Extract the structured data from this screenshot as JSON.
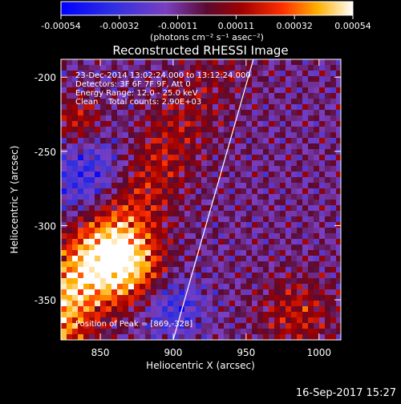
{
  "chart_data": {
    "type": "heatmap",
    "title": "Reconstructed RHESSI Image",
    "xlabel": "Heliocentric X (arcsec)",
    "ylabel": "Heliocentric Y (arcsec)",
    "xlim": [
      823,
      1015
    ],
    "ylim": [
      -377,
      -188
    ],
    "x_ticks": [
      850,
      900,
      950,
      1000
    ],
    "y_ticks": [
      -200,
      -250,
      -300,
      -350
    ],
    "colorbar": {
      "range": [
        -0.00054,
        0.00054
      ],
      "ticks": [
        "-0.00054",
        "-0.00032",
        "-0.00011",
        "0.00011",
        "0.00032",
        "0.00054"
      ],
      "units_label": "(photons cm⁻² s⁻¹ asec⁻²)"
    },
    "annotations": [
      "23-Dec-2014 13:02:24.000 to 13:12:24.000",
      "Detectors: 3F 6F 7F 9F, Att 0",
      "Energy Range: 12.0 - 25.0 keV",
      "Clean    Total counts: 2.90E+03"
    ],
    "peak_label": "Position of Peak = [869,-328]",
    "peak": [
      869,
      -328
    ],
    "limb_line": [
      [
        900,
        -377
      ],
      [
        955,
        -188
      ]
    ]
  },
  "footer": {
    "timestamp": "16-Sep-2017 15:27"
  }
}
